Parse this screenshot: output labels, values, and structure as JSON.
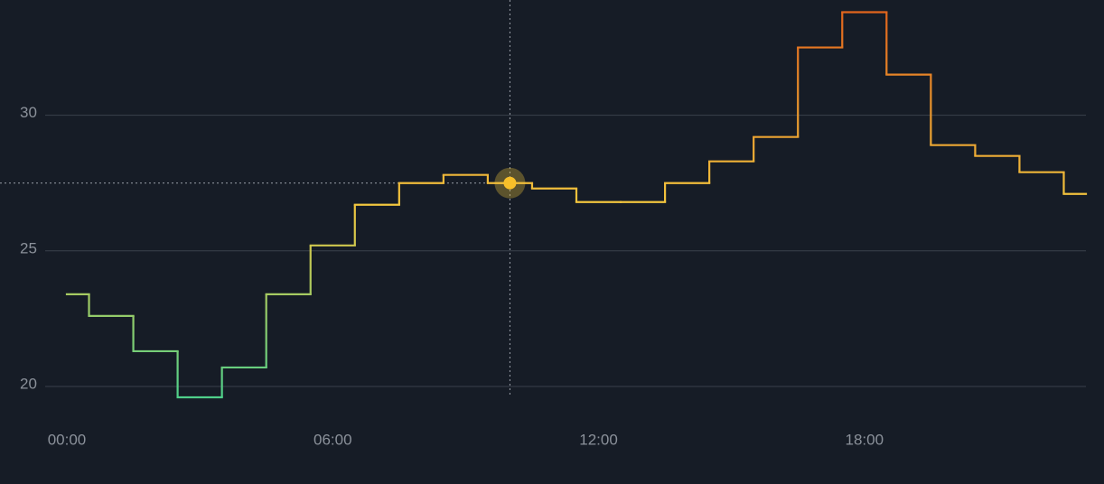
{
  "chart_data": {
    "type": "step",
    "x": [
      0,
      1,
      2,
      3,
      4,
      5,
      6,
      7,
      8,
      9,
      10,
      11,
      12,
      13,
      14,
      15,
      16,
      17,
      18,
      19,
      20,
      21,
      22,
      23
    ],
    "values": [
      23.4,
      22.6,
      21.3,
      19.6,
      20.7,
      23.4,
      25.2,
      26.7,
      27.5,
      27.8,
      27.5,
      27.3,
      26.8,
      26.8,
      27.5,
      28.3,
      29.2,
      32.5,
      33.8,
      31.5,
      28.9,
      28.5,
      27.9,
      27.1
    ],
    "colors": [
      "#4fd08a",
      "#f2c63e",
      "#e2651c"
    ],
    "xlim": [
      0,
      23
    ],
    "ylim": [
      19,
      34.25
    ],
    "xticks": [
      {
        "value": 0,
        "label": "00:00"
      },
      {
        "value": 6,
        "label": "06:00"
      },
      {
        "value": 12,
        "label": "12:00"
      },
      {
        "value": 18,
        "label": "18:00"
      }
    ],
    "yticks": [
      20,
      25,
      30
    ],
    "grid": true,
    "hover_index": 10
  }
}
